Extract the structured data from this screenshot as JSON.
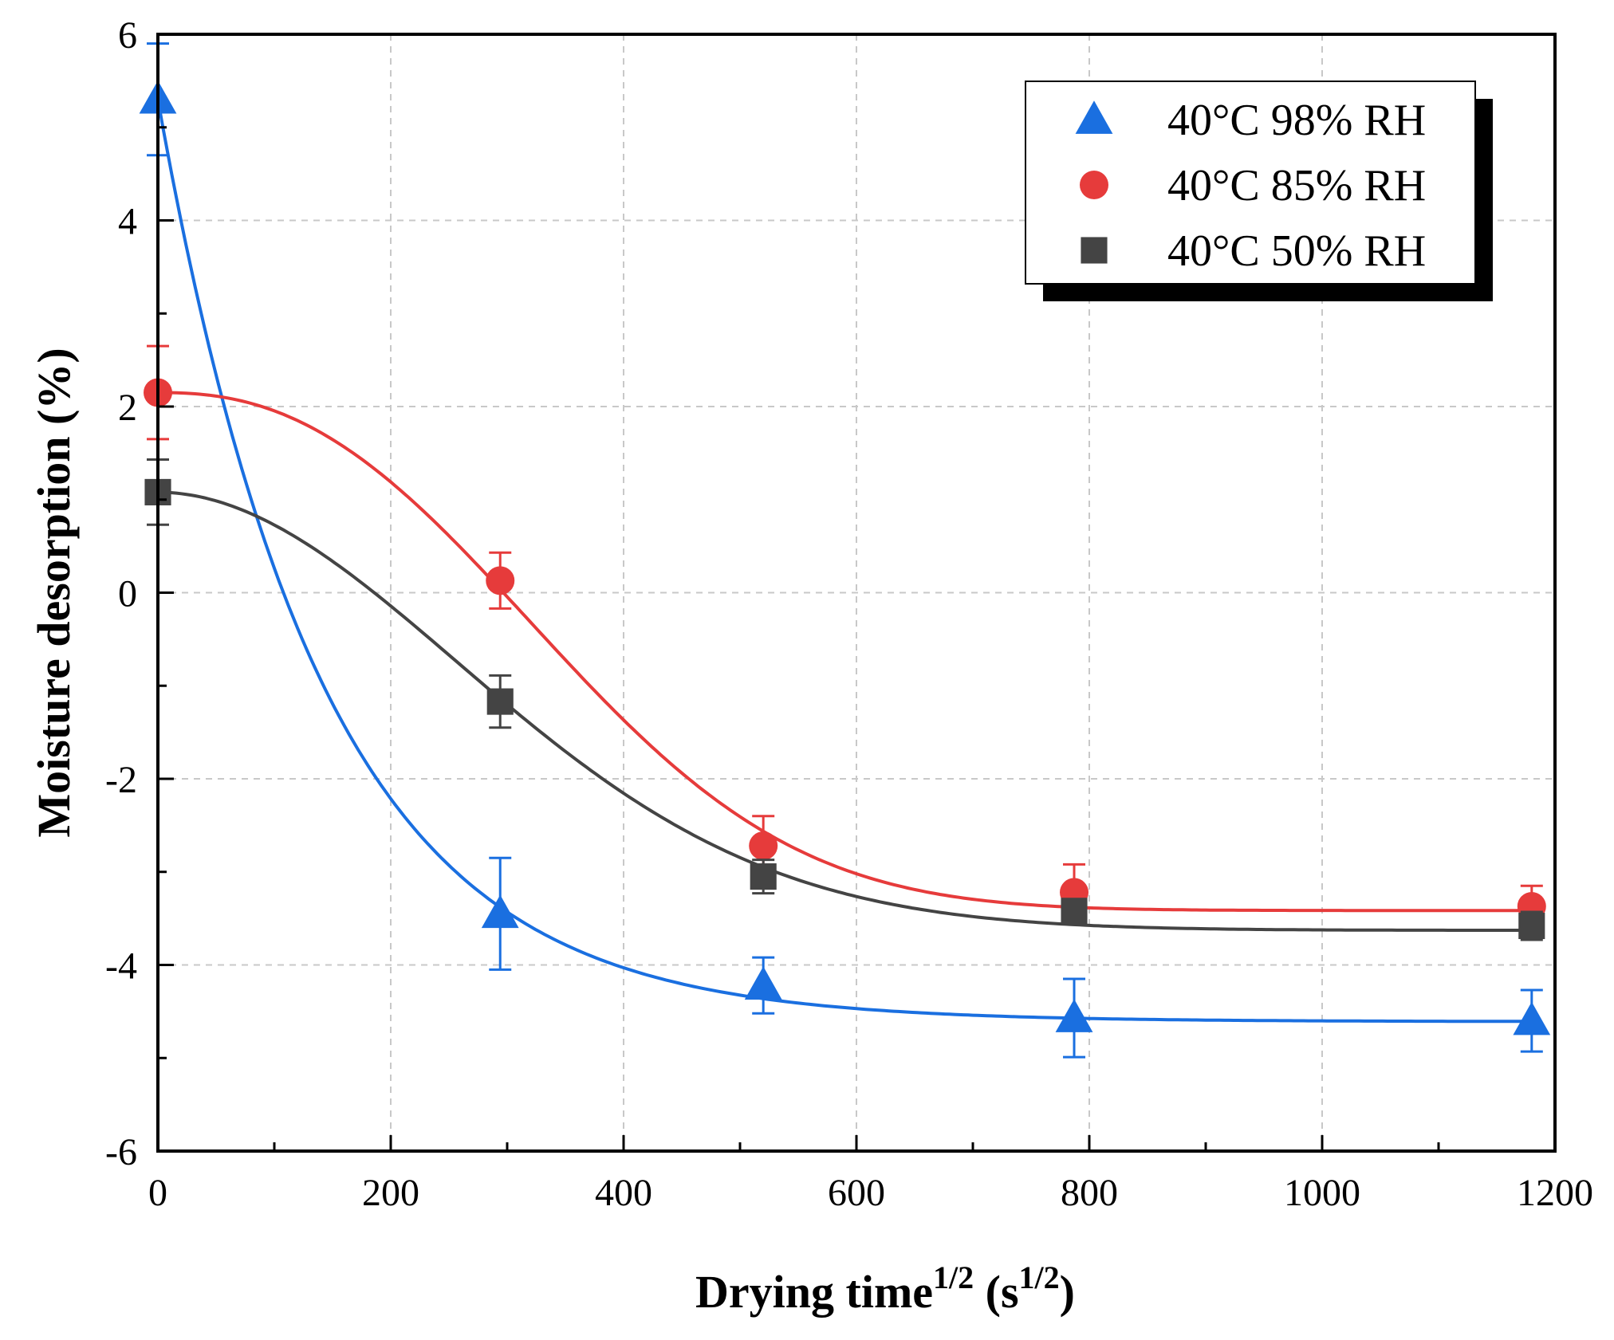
{
  "chart_data": {
    "type": "scatter",
    "title": "",
    "xlabel": "Drying time",
    "xlabel_sup": "1/2",
    "xlabel_unit_open": " (s",
    "xlabel_unit_sup": "1/2",
    "xlabel_unit_close": ")",
    "ylabel": "Moisture desorption (%)",
    "xlim": [
      0,
      1200
    ],
    "ylim": [
      -6,
      6
    ],
    "xticks": [
      0,
      200,
      400,
      600,
      800,
      1000,
      1200
    ],
    "yticks": [
      -6,
      -4,
      -2,
      0,
      2,
      4,
      6
    ],
    "grid": true,
    "legend_position": "top-right",
    "series": [
      {
        "name": "40°C 98% RH",
        "color": "#1a6fe0",
        "marker": "triangle",
        "x": [
          0,
          294,
          520,
          787,
          1180
        ],
        "y": [
          5.3,
          -3.45,
          -4.22,
          -4.57,
          -4.6
        ],
        "err": [
          0.6,
          0.6,
          0.3,
          0.42,
          0.33
        ],
        "fit": "exponential-decay"
      },
      {
        "name": "40°C 85% RH",
        "color": "#e63b3b",
        "marker": "circle",
        "x": [
          0,
          294,
          520,
          787,
          1180
        ],
        "y": [
          2.15,
          0.13,
          -2.72,
          -3.22,
          -3.37
        ],
        "err": [
          0.5,
          0.3,
          0.32,
          0.3,
          0.22
        ],
        "fit": "exponential-decay"
      },
      {
        "name": "40°C 50% RH",
        "color": "#444444",
        "marker": "square",
        "x": [
          0,
          294,
          520,
          787,
          1180
        ],
        "y": [
          1.08,
          -1.17,
          -3.05,
          -3.42,
          -3.58
        ],
        "err": [
          0.35,
          0.28,
          0.18,
          0.12,
          0.15
        ],
        "fit": "exponential-decay"
      }
    ]
  }
}
